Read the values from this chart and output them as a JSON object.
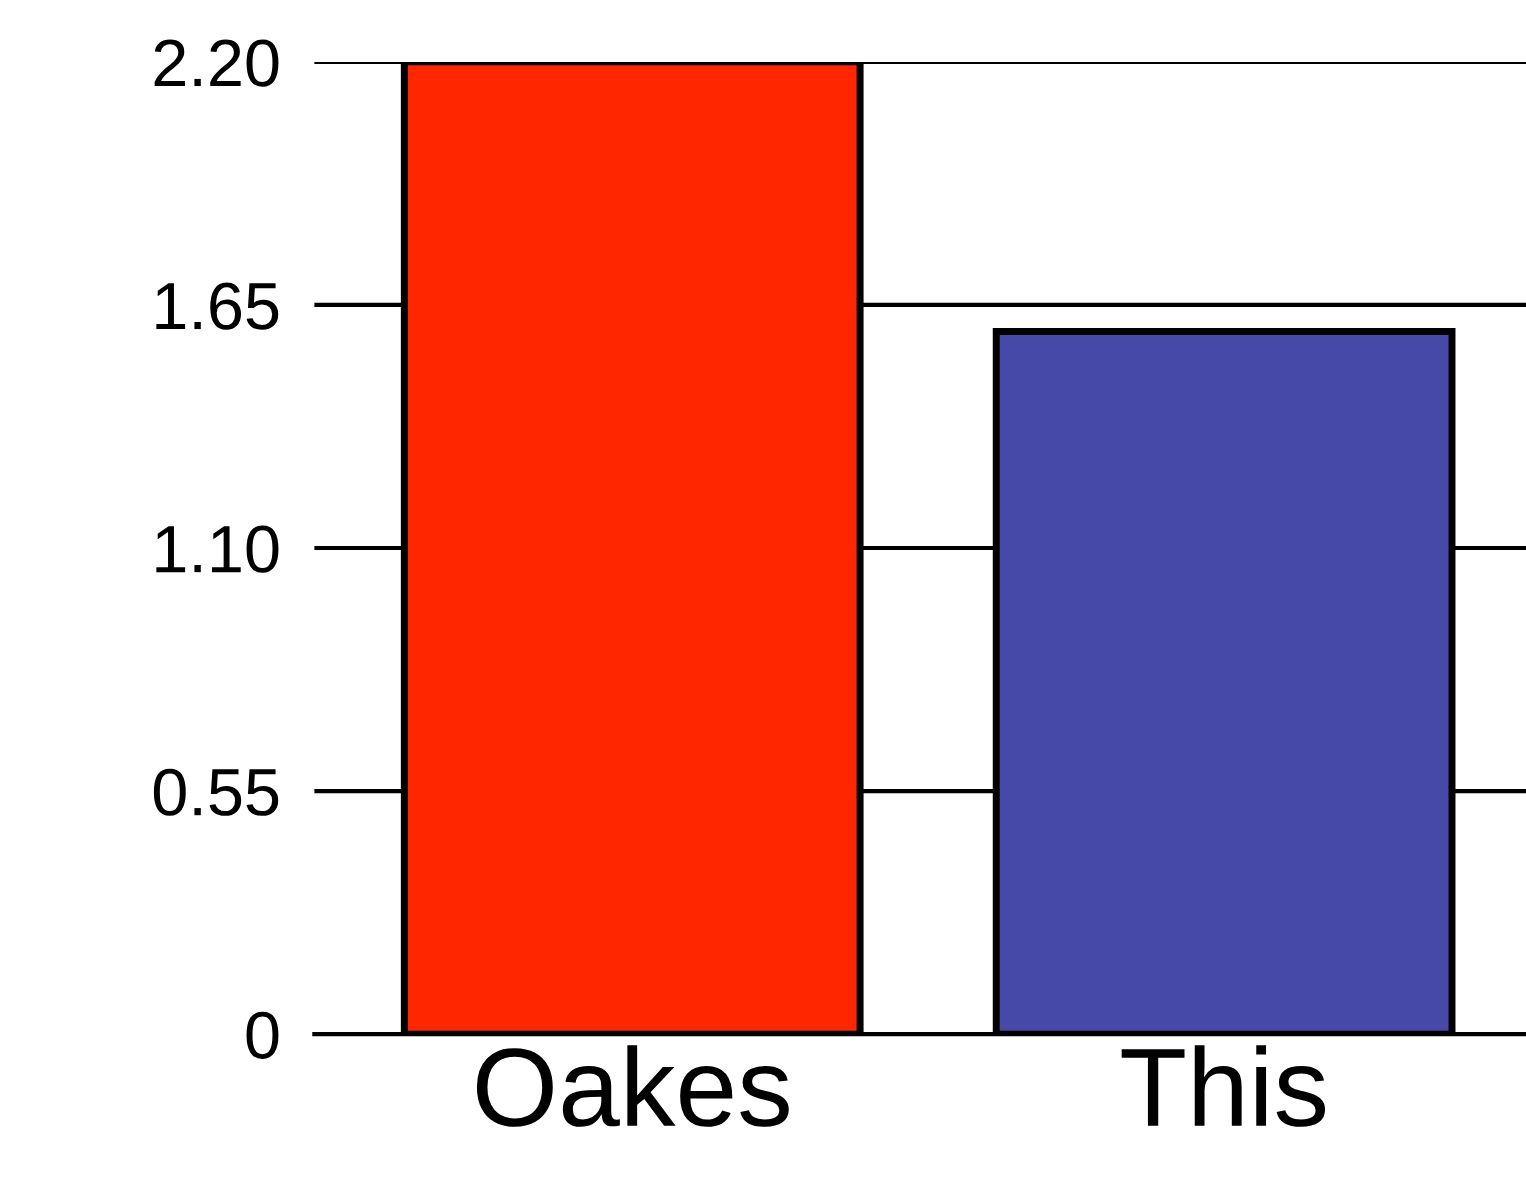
{
  "chart_data": {
    "type": "bar",
    "categories": [
      "Oakes",
      "This"
    ],
    "values": [
      2.2,
      1.59
    ],
    "colors": [
      "#ff2600",
      "#4649a8"
    ],
    "ylim": [
      0,
      2.2
    ],
    "yticks": [
      {
        "value": 0,
        "label": "0"
      },
      {
        "value": 0.55,
        "label": "0.55"
      },
      {
        "value": 1.1,
        "label": "1.10"
      },
      {
        "value": 1.65,
        "label": "1.65"
      },
      {
        "value": 2.2,
        "label": "2.20"
      }
    ],
    "grid": "y"
  }
}
